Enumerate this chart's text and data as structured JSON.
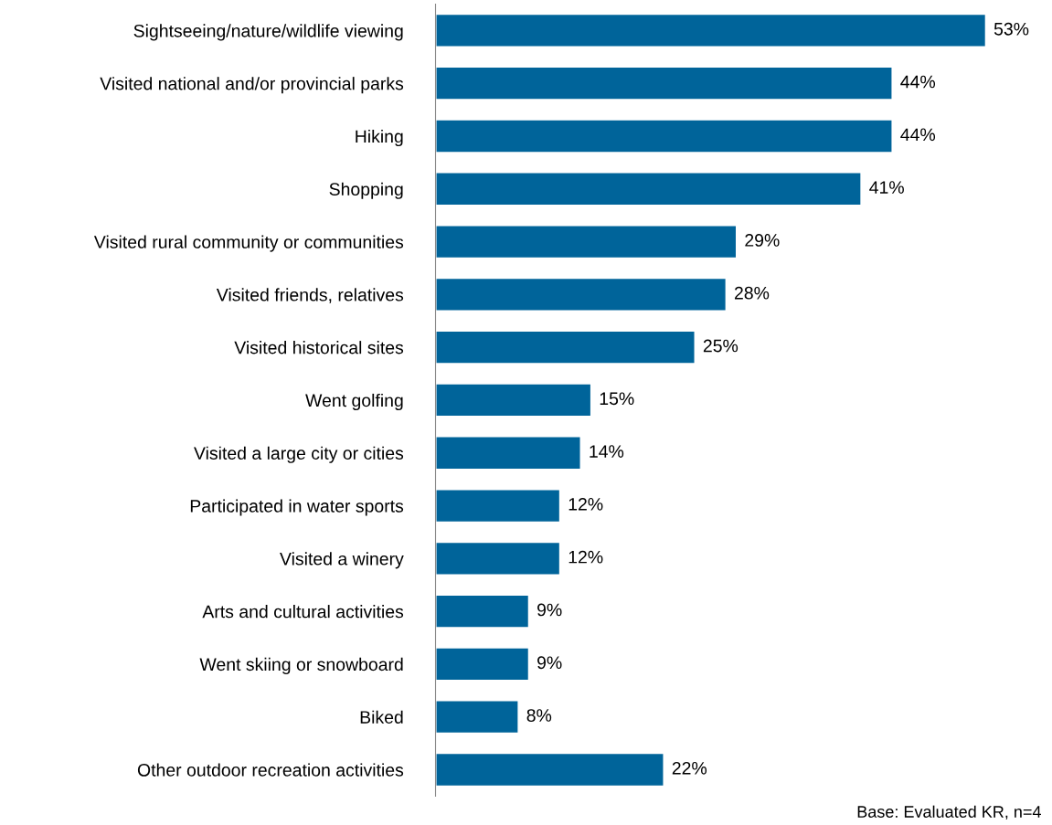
{
  "chart_data": {
    "type": "bar",
    "orientation": "horizontal",
    "grid": false,
    "legend": false,
    "tick_labels": "y",
    "categories": [
      "Sightseeing/nature/wildlife viewing",
      "Visited national and/or provincial parks",
      "Hiking",
      "Shopping",
      "Visited rural community or communities",
      "Visited friends, relatives",
      "Visited historical sites",
      "Went golfing",
      "Visited a large city or cities",
      "Participated in water sports",
      "Visited a winery",
      "Arts and cultural activities",
      "Went skiing or snowboard",
      "Biked",
      "Other outdoor recreation activities"
    ],
    "series": [
      {
        "color": "#00649a",
        "values": [
          53,
          44,
          44,
          41,
          29,
          28,
          25,
          15,
          14,
          12,
          12,
          9,
          9,
          8,
          22
        ],
        "value_labels": [
          "53%",
          "44%",
          "44%",
          "41%",
          "29%",
          "28%",
          "25%",
          "15%",
          "14%",
          "12%",
          "12%",
          "9%",
          "9%",
          "8%",
          "22%"
        ]
      }
    ],
    "annotations": [
      "Base: Evaluated KR, n=4"
    ]
  }
}
